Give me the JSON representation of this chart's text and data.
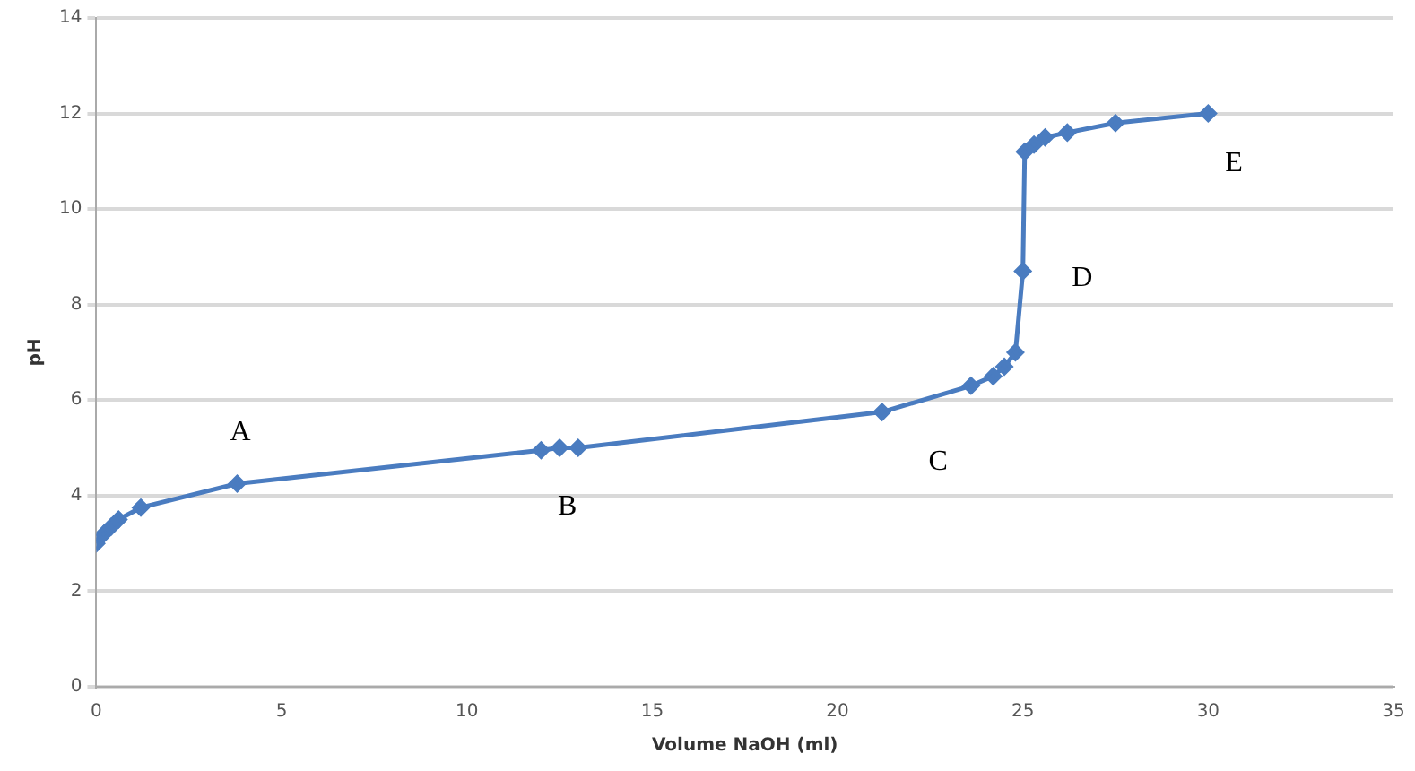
{
  "chart_data": {
    "type": "line",
    "xlabel": "Volume NaOH (ml)",
    "ylabel": "pH",
    "x": [
      0,
      0.2,
      0.4,
      0.6,
      1.2,
      3.8,
      12,
      12.5,
      13,
      21.2,
      23.6,
      24.2,
      24.5,
      24.8,
      25,
      25.05,
      25.3,
      25.6,
      26.2,
      27.5,
      30
    ],
    "series": [
      {
        "color": "#4a7cc0",
        "values": [
          3.0,
          3.2,
          3.35,
          3.5,
          3.75,
          4.25,
          4.95,
          5.0,
          5.0,
          5.75,
          6.3,
          6.5,
          6.7,
          7.0,
          8.7,
          11.2,
          11.35,
          11.5,
          11.6,
          11.8,
          12.0
        ]
      }
    ],
    "xlim": [
      0,
      35
    ],
    "xticks": [
      0,
      5,
      10,
      15,
      20,
      25,
      30,
      35
    ],
    "ylim": [
      0,
      14
    ],
    "yticks": [
      0,
      2,
      4,
      6,
      8,
      10,
      12,
      14
    ],
    "grid": "y",
    "legend": false,
    "marker": "diamond",
    "line_style": "solid",
    "annotations": [
      "A",
      "B",
      "C",
      "D",
      "E"
    ]
  }
}
